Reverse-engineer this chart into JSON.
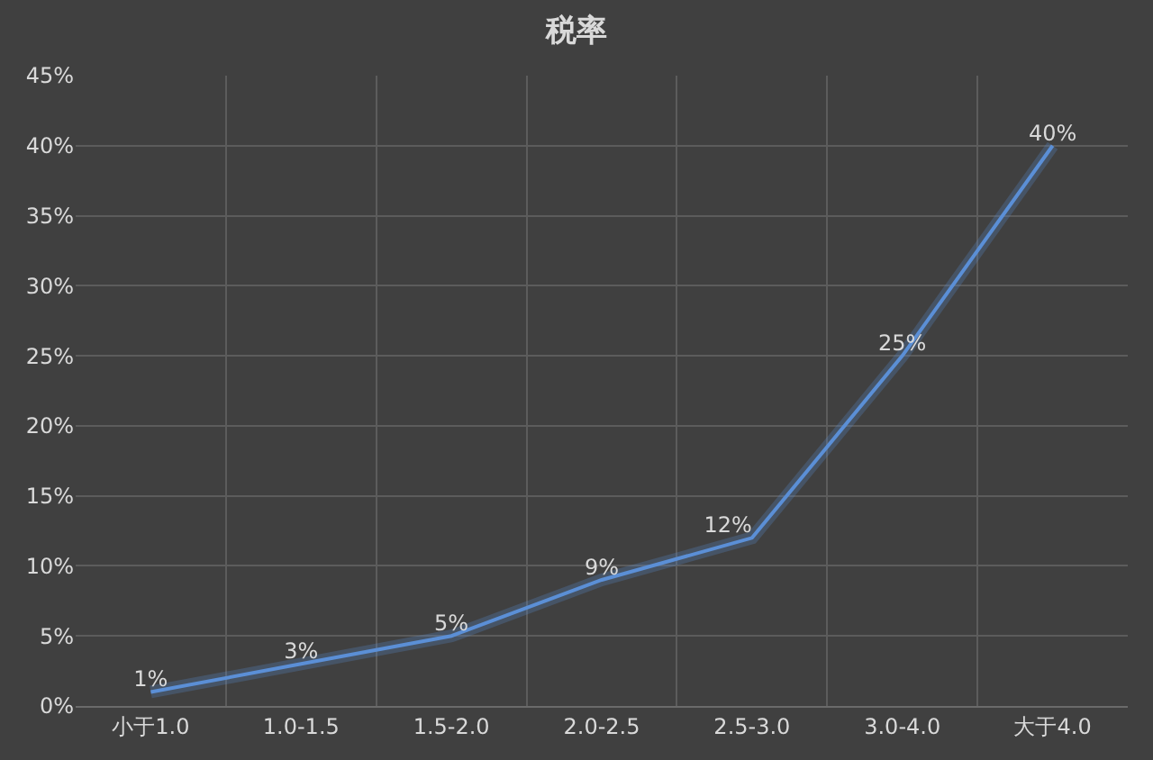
{
  "chart_data": {
    "type": "line",
    "title": "税率",
    "categories": [
      "小于1.0",
      "1.0-1.5",
      "1.5-2.0",
      "2.0-2.5",
      "2.5-3.0",
      "3.0-4.0",
      "大于4.0"
    ],
    "series": [
      {
        "color": "#5b8fd6",
        "values": [
          1,
          3,
          5,
          9,
          12,
          25,
          40
        ],
        "value_labels": [
          "1%",
          "3%",
          "5%",
          "9%",
          "12%",
          "25%",
          "40%"
        ]
      }
    ],
    "ylim": [
      0,
      45
    ],
    "yticks": [
      {
        "value": 0,
        "label": "0%"
      },
      {
        "value": 5,
        "label": "5%"
      },
      {
        "value": 10,
        "label": "10%"
      },
      {
        "value": 15,
        "label": "15%"
      },
      {
        "value": 20,
        "label": "20%"
      },
      {
        "value": 25,
        "label": "25%"
      },
      {
        "value": 30,
        "label": "30%"
      },
      {
        "value": 35,
        "label": "35%"
      },
      {
        "value": 40,
        "label": "40%"
      },
      {
        "value": 45,
        "label": "45%"
      }
    ],
    "grid": true,
    "marker": "none",
    "line_style": "solid"
  }
}
